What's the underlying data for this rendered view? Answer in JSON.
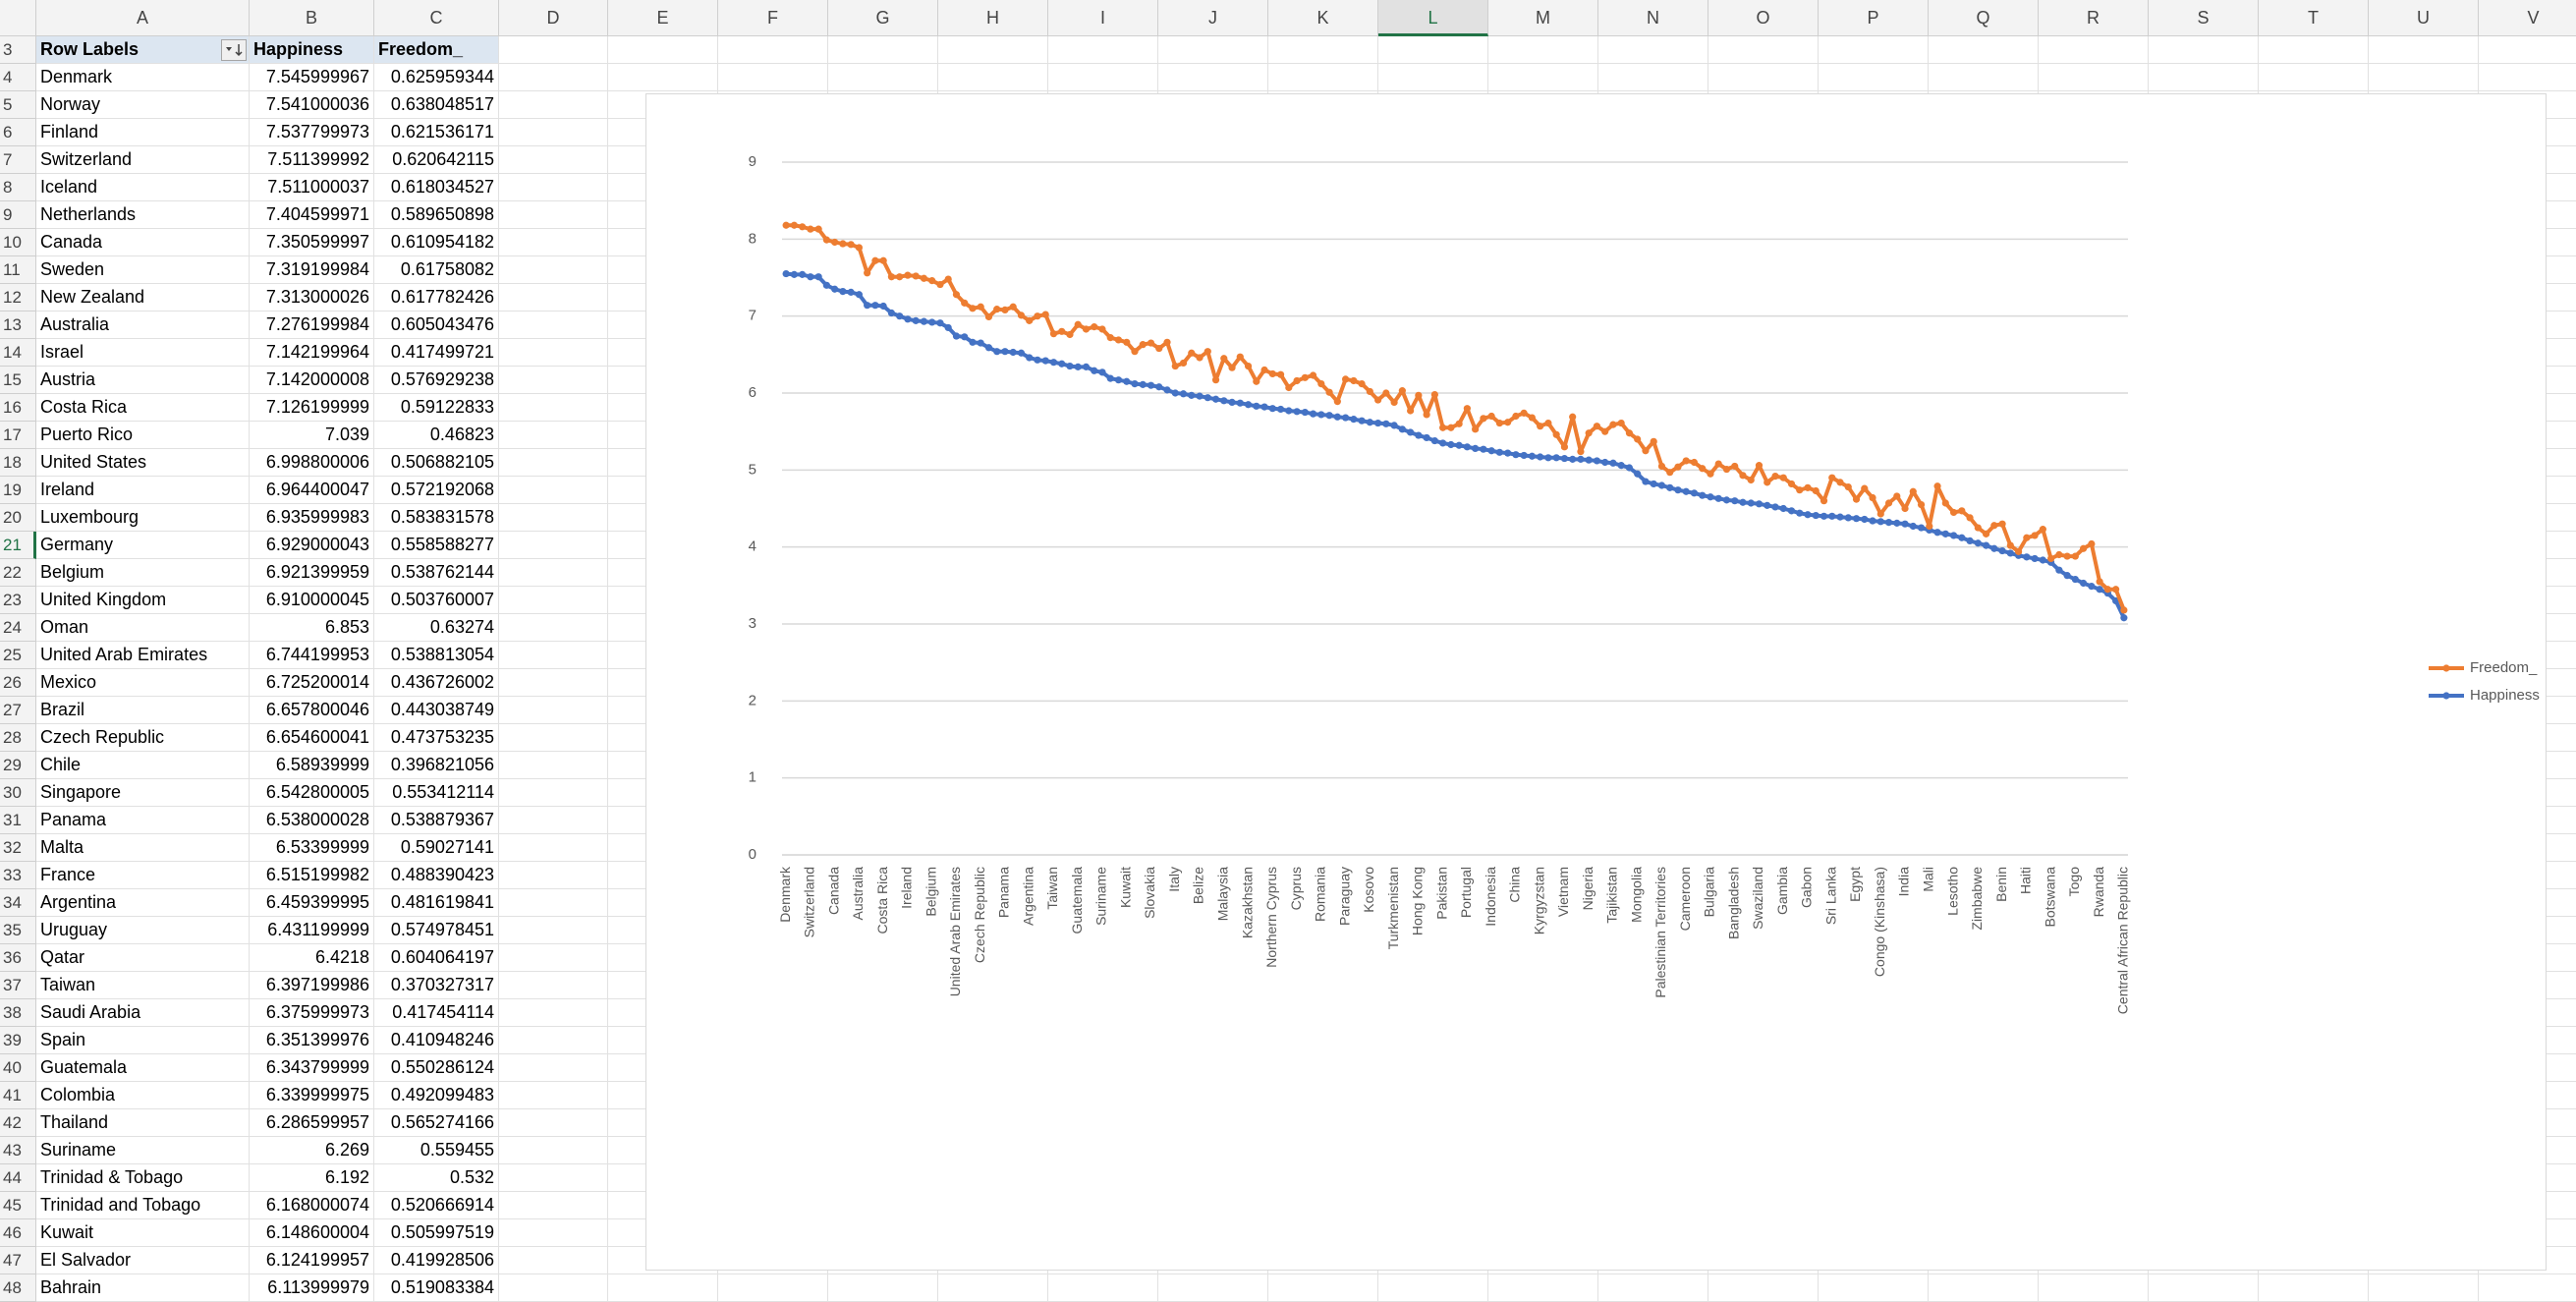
{
  "sheet": {
    "column_headers": [
      "A",
      "B",
      "C",
      "D",
      "E",
      "F",
      "G",
      "H",
      "I",
      "J",
      "K",
      "L",
      "M",
      "N",
      "O",
      "P",
      "Q",
      "R",
      "S",
      "T",
      "U",
      "V"
    ],
    "row_numbers": [
      3,
      4,
      5,
      6,
      7,
      8,
      9,
      10,
      11,
      12,
      13,
      14,
      15,
      16,
      17,
      18,
      19,
      20,
      21,
      22,
      23,
      24,
      25,
      26,
      27,
      28,
      29,
      30,
      31,
      32,
      33,
      34,
      35,
      36,
      37,
      38,
      39,
      40,
      41,
      42,
      43,
      44,
      45,
      46,
      47,
      48
    ],
    "header_row": [
      "Row Labels",
      "Happiness",
      "Freedom_"
    ],
    "rows": [
      [
        "Denmark",
        "7.545999967",
        "0.625959344"
      ],
      [
        "Norway",
        "7.541000036",
        "0.638048517"
      ],
      [
        "Finland",
        "7.537799973",
        "0.621536171"
      ],
      [
        "Switzerland",
        "7.511399992",
        "0.620642115"
      ],
      [
        "Iceland",
        "7.511000037",
        "0.618034527"
      ],
      [
        "Netherlands",
        "7.404599971",
        "0.589650898"
      ],
      [
        "Canada",
        "7.350599997",
        "0.610954182"
      ],
      [
        "Sweden",
        "7.319199984",
        "0.61758082"
      ],
      [
        "New Zealand",
        "7.313000026",
        "0.617782426"
      ],
      [
        "Australia",
        "7.276199984",
        "0.605043476"
      ],
      [
        "Israel",
        "7.142199964",
        "0.417499721"
      ],
      [
        "Austria",
        "7.142000008",
        "0.576929238"
      ],
      [
        "Costa Rica",
        "7.126199999",
        "0.59122833"
      ],
      [
        "Puerto Rico",
        "7.039",
        "0.46823"
      ],
      [
        "United States",
        "6.998800006",
        "0.506882105"
      ],
      [
        "Ireland",
        "6.964400047",
        "0.572192068"
      ],
      [
        "Luxembourg",
        "6.935999983",
        "0.583831578"
      ],
      [
        "Germany",
        "6.929000043",
        "0.558588277"
      ],
      [
        "Belgium",
        "6.921399959",
        "0.538762144"
      ],
      [
        "United Kingdom",
        "6.910000045",
        "0.503760007"
      ],
      [
        "Oman",
        "6.853",
        "0.63274"
      ],
      [
        "United Arab Emirates",
        "6.744199953",
        "0.538813054"
      ],
      [
        "Mexico",
        "6.725200014",
        "0.436726002"
      ],
      [
        "Brazil",
        "6.657800046",
        "0.443038749"
      ],
      [
        "Czech Republic",
        "6.654600041",
        "0.473753235"
      ],
      [
        "Chile",
        "6.58939999",
        "0.396821056"
      ],
      [
        "Singapore",
        "6.542800005",
        "0.553412114"
      ],
      [
        "Panama",
        "6.538000028",
        "0.538879367"
      ],
      [
        "Malta",
        "6.53399999",
        "0.59027141"
      ],
      [
        "France",
        "6.515199982",
        "0.488390423"
      ],
      [
        "Argentina",
        "6.459399995",
        "0.481619841"
      ],
      [
        "Uruguay",
        "6.431199999",
        "0.574978451"
      ],
      [
        "Qatar",
        "6.4218",
        "0.604064197"
      ],
      [
        "Taiwan",
        "6.397199986",
        "0.370327317"
      ],
      [
        "Saudi Arabia",
        "6.375999973",
        "0.417454114"
      ],
      [
        "Spain",
        "6.351399976",
        "0.410948246"
      ],
      [
        "Guatemala",
        "6.343799999",
        "0.550286124"
      ],
      [
        "Colombia",
        "6.339999975",
        "0.492099483"
      ],
      [
        "Thailand",
        "6.286599957",
        "0.565274166"
      ],
      [
        "Suriname",
        "6.269",
        "0.559455"
      ],
      [
        "Trinidad & Tobago",
        "6.192",
        "0.532"
      ],
      [
        "Trinidad and Tobago",
        "6.168000074",
        "0.520666914"
      ],
      [
        "Kuwait",
        "6.148600004",
        "0.505997519"
      ],
      [
        "El Salvador",
        "6.124199957",
        "0.419928506"
      ],
      [
        "Bahrain",
        "6.113999979",
        "0.519083384"
      ]
    ]
  },
  "chart_data": {
    "type": "line",
    "stacked": true,
    "markers": true,
    "grid": true,
    "legend": "right",
    "ylim": [
      0,
      9
    ],
    "yticks": [
      0,
      1,
      2,
      3,
      4,
      5,
      6,
      7,
      8,
      9
    ],
    "categories": [
      "Denmark",
      null,
      null,
      "Switzerland",
      null,
      null,
      "Canada",
      null,
      null,
      "Australia",
      null,
      null,
      "Costa Rica",
      null,
      null,
      "Ireland",
      null,
      null,
      "Belgium",
      null,
      null,
      "United Arab Emirates",
      null,
      null,
      "Czech Republic",
      null,
      null,
      "Panama",
      null,
      null,
      "Argentina",
      null,
      null,
      "Taiwan",
      null,
      null,
      "Guatemala",
      null,
      null,
      "Suriname",
      null,
      null,
      "Kuwait",
      null,
      null,
      "Slovakia",
      null,
      null,
      "Italy",
      null,
      null,
      "Belize",
      null,
      null,
      "Malaysia",
      null,
      null,
      "Kazakhstan",
      null,
      null,
      "Northern Cyprus",
      null,
      null,
      "Cyprus",
      null,
      null,
      "Romania",
      null,
      null,
      "Paraguay",
      null,
      null,
      "Kosovo",
      null,
      null,
      "Turkmenistan",
      null,
      null,
      "Hong Kong",
      null,
      null,
      "Pakistan",
      null,
      null,
      "Portugal",
      null,
      null,
      "Indonesia",
      null,
      null,
      "China",
      null,
      null,
      "Kyrgyzstan",
      null,
      null,
      "Vietnam",
      null,
      null,
      "Nigeria",
      null,
      null,
      "Tajikistan",
      null,
      null,
      "Mongolia",
      null,
      null,
      "Palestinian Territories",
      null,
      null,
      "Cameroon",
      null,
      null,
      "Bulgaria",
      null,
      null,
      "Bangladesh",
      null,
      null,
      "Swaziland",
      null,
      null,
      "Gambia",
      null,
      null,
      "Gabon",
      null,
      null,
      "Sri Lanka",
      null,
      null,
      "Egypt",
      null,
      null,
      "Congo (Kinshasa)",
      null,
      null,
      "India",
      null,
      null,
      "Mali",
      null,
      null,
      "Lesotho",
      null,
      null,
      "Zimbabwe",
      null,
      null,
      "Benin",
      null,
      null,
      "Haiti",
      null,
      null,
      "Botswana",
      null,
      null,
      "Togo",
      null,
      null,
      "Rwanda",
      null,
      null,
      "Central African Republic"
    ],
    "series": [
      {
        "name": "Happiness",
        "color": "#4472c4",
        "values": [
          7.55,
          7.54,
          7.54,
          7.51,
          7.51,
          7.4,
          7.35,
          7.32,
          7.31,
          7.28,
          7.14,
          7.14,
          7.13,
          7.04,
          7.0,
          6.96,
          6.94,
          6.93,
          6.92,
          6.91,
          6.85,
          6.74,
          6.73,
          6.66,
          6.65,
          6.59,
          6.54,
          6.54,
          6.53,
          6.52,
          6.46,
          6.43,
          6.42,
          6.4,
          6.38,
          6.35,
          6.34,
          6.34,
          6.29,
          6.27,
          6.19,
          6.17,
          6.15,
          6.12,
          6.11,
          6.1,
          6.08,
          6.04,
          6.0,
          5.99,
          5.97,
          5.96,
          5.94,
          5.92,
          5.9,
          5.88,
          5.87,
          5.85,
          5.83,
          5.82,
          5.8,
          5.79,
          5.77,
          5.76,
          5.75,
          5.73,
          5.72,
          5.71,
          5.69,
          5.68,
          5.66,
          5.64,
          5.62,
          5.61,
          5.6,
          5.58,
          5.53,
          5.49,
          5.45,
          5.42,
          5.38,
          5.35,
          5.33,
          5.32,
          5.3,
          5.28,
          5.27,
          5.25,
          5.23,
          5.22,
          5.2,
          5.19,
          5.18,
          5.17,
          5.16,
          5.16,
          5.15,
          5.14,
          5.14,
          5.13,
          5.12,
          5.1,
          5.09,
          5.06,
          5.03,
          4.95,
          4.85,
          4.82,
          4.8,
          4.77,
          4.74,
          4.72,
          4.7,
          4.67,
          4.65,
          4.63,
          4.61,
          4.6,
          4.58,
          4.57,
          4.56,
          4.54,
          4.52,
          4.5,
          4.47,
          4.44,
          4.42,
          4.41,
          4.4,
          4.4,
          4.39,
          4.38,
          4.37,
          4.36,
          4.34,
          4.33,
          4.32,
          4.31,
          4.3,
          4.27,
          4.25,
          4.22,
          4.19,
          4.17,
          4.15,
          4.12,
          4.08,
          4.05,
          4.02,
          3.98,
          3.95,
          3.92,
          3.89,
          3.87,
          3.85,
          3.83,
          3.8,
          3.7,
          3.63,
          3.58,
          3.53,
          3.49,
          3.45,
          3.4,
          3.3,
          3.08
        ]
      },
      {
        "name": "Freedom_",
        "color": "#ed7d31",
        "values": [
          0.63,
          0.64,
          0.62,
          0.62,
          0.62,
          0.59,
          0.61,
          0.62,
          0.62,
          0.61,
          0.42,
          0.58,
          0.59,
          0.47,
          0.51,
          0.57,
          0.58,
          0.56,
          0.54,
          0.5,
          0.63,
          0.54,
          0.44,
          0.44,
          0.47,
          0.4,
          0.55,
          0.54,
          0.59,
          0.49,
          0.48,
          0.57,
          0.6,
          0.37,
          0.42,
          0.41,
          0.55,
          0.49,
          0.57,
          0.56,
          0.53,
          0.52,
          0.51,
          0.42,
          0.52,
          0.55,
          0.5,
          0.62,
          0.35,
          0.4,
          0.55,
          0.5,
          0.6,
          0.25,
          0.55,
          0.45,
          0.6,
          0.5,
          0.32,
          0.48,
          0.45,
          0.45,
          0.3,
          0.4,
          0.45,
          0.5,
          0.4,
          0.3,
          0.2,
          0.5,
          0.5,
          0.48,
          0.4,
          0.3,
          0.4,
          0.3,
          0.5,
          0.28,
          0.52,
          0.3,
          0.6,
          0.2,
          0.22,
          0.28,
          0.5,
          0.25,
          0.4,
          0.45,
          0.38,
          0.4,
          0.5,
          0.55,
          0.5,
          0.4,
          0.45,
          0.3,
          0.15,
          0.55,
          0.1,
          0.35,
          0.45,
          0.4,
          0.5,
          0.55,
          0.45,
          0.45,
          0.4,
          0.55,
          0.25,
          0.2,
          0.3,
          0.4,
          0.4,
          0.35,
          0.3,
          0.45,
          0.4,
          0.45,
          0.35,
          0.3,
          0.5,
          0.3,
          0.4,
          0.4,
          0.35,
          0.3,
          0.35,
          0.32,
          0.2,
          0.5,
          0.45,
          0.4,
          0.25,
          0.4,
          0.3,
          0.1,
          0.25,
          0.35,
          0.2,
          0.45,
          0.3,
          0.05,
          0.6,
          0.4,
          0.3,
          0.35,
          0.3,
          0.2,
          0.15,
          0.3,
          0.35,
          0.1,
          0.05,
          0.25,
          0.3,
          0.4,
          0.05,
          0.2,
          0.25,
          0.3,
          0.45,
          0.55,
          0.1,
          0.05,
          0.15,
          0.1
        ]
      }
    ]
  }
}
